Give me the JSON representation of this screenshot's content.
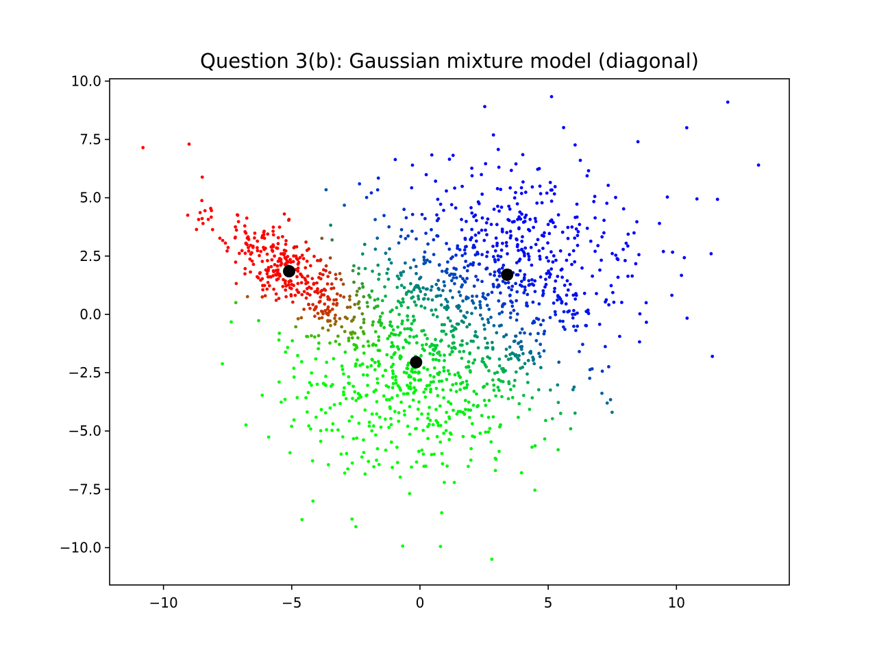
{
  "chart_data": {
    "type": "scatter",
    "title": "Question 3(b): Gaussian mixture model (diagonal)",
    "xlabel": "",
    "ylabel": "",
    "xlim": [
      -12.1,
      14.4
    ],
    "ylim": [
      -11.6,
      10.1
    ],
    "xticks": [
      -10,
      -5,
      0,
      5,
      10
    ],
    "xtick_labels": [
      "−10",
      "−5",
      "0",
      "5",
      "10"
    ],
    "yticks": [
      10.0,
      7.5,
      5.0,
      2.5,
      0.0,
      -2.5,
      -5.0,
      -7.5,
      -10.0
    ],
    "ytick_labels": [
      "10.0",
      "7.5",
      "5.0",
      "2.5",
      "0.0",
      "−2.5",
      "−5.0",
      "−7.5",
      "−10.0"
    ],
    "grid": false,
    "legend": "none",
    "colors": {
      "cluster_red": "#ff0000",
      "cluster_green": "#00ff00",
      "cluster_blue": "#0000ff",
      "center": "#000000"
    },
    "centers": [
      {
        "x": -5.1,
        "y": 1.85
      },
      {
        "x": -0.15,
        "y": -2.05
      },
      {
        "x": 3.4,
        "y": 1.7
      }
    ],
    "clusters": [
      {
        "color": "#ff0000",
        "mean": [
          -5.1,
          1.85
        ],
        "std": [
          1.4,
          1.3
        ],
        "corr": -0.75,
        "count": 330
      },
      {
        "color": "#00ff00",
        "mean": [
          -0.15,
          -2.05
        ],
        "std": [
          2.6,
          2.4
        ],
        "corr": 0.0,
        "count": 700
      },
      {
        "color": "#0000ff",
        "mean": [
          3.4,
          1.7
        ],
        "std": [
          2.6,
          2.3
        ],
        "corr": 0.0,
        "count": 650
      }
    ],
    "outliers": [
      {
        "x": -10.8,
        "y": 7.15
      },
      {
        "x": -9.0,
        "y": 7.3
      },
      {
        "x": 12.0,
        "y": 9.1
      },
      {
        "x": 13.2,
        "y": 6.4
      },
      {
        "x": 10.4,
        "y": 8.0
      },
      {
        "x": 8.5,
        "y": 7.4
      },
      {
        "x": 11.4,
        "y": -1.8
      },
      {
        "x": 2.8,
        "y": -10.5
      },
      {
        "x": 0.8,
        "y": -9.95
      },
      {
        "x": -2.5,
        "y": -9.1
      },
      {
        "x": -4.6,
        "y": -8.8
      },
      {
        "x": 1.15,
        "y": 6.65
      },
      {
        "x": -5.5,
        "y": -1.1
      },
      {
        "x": 7.3,
        "y": -3.8
      },
      {
        "x": 10.8,
        "y": 4.95
      }
    ]
  }
}
